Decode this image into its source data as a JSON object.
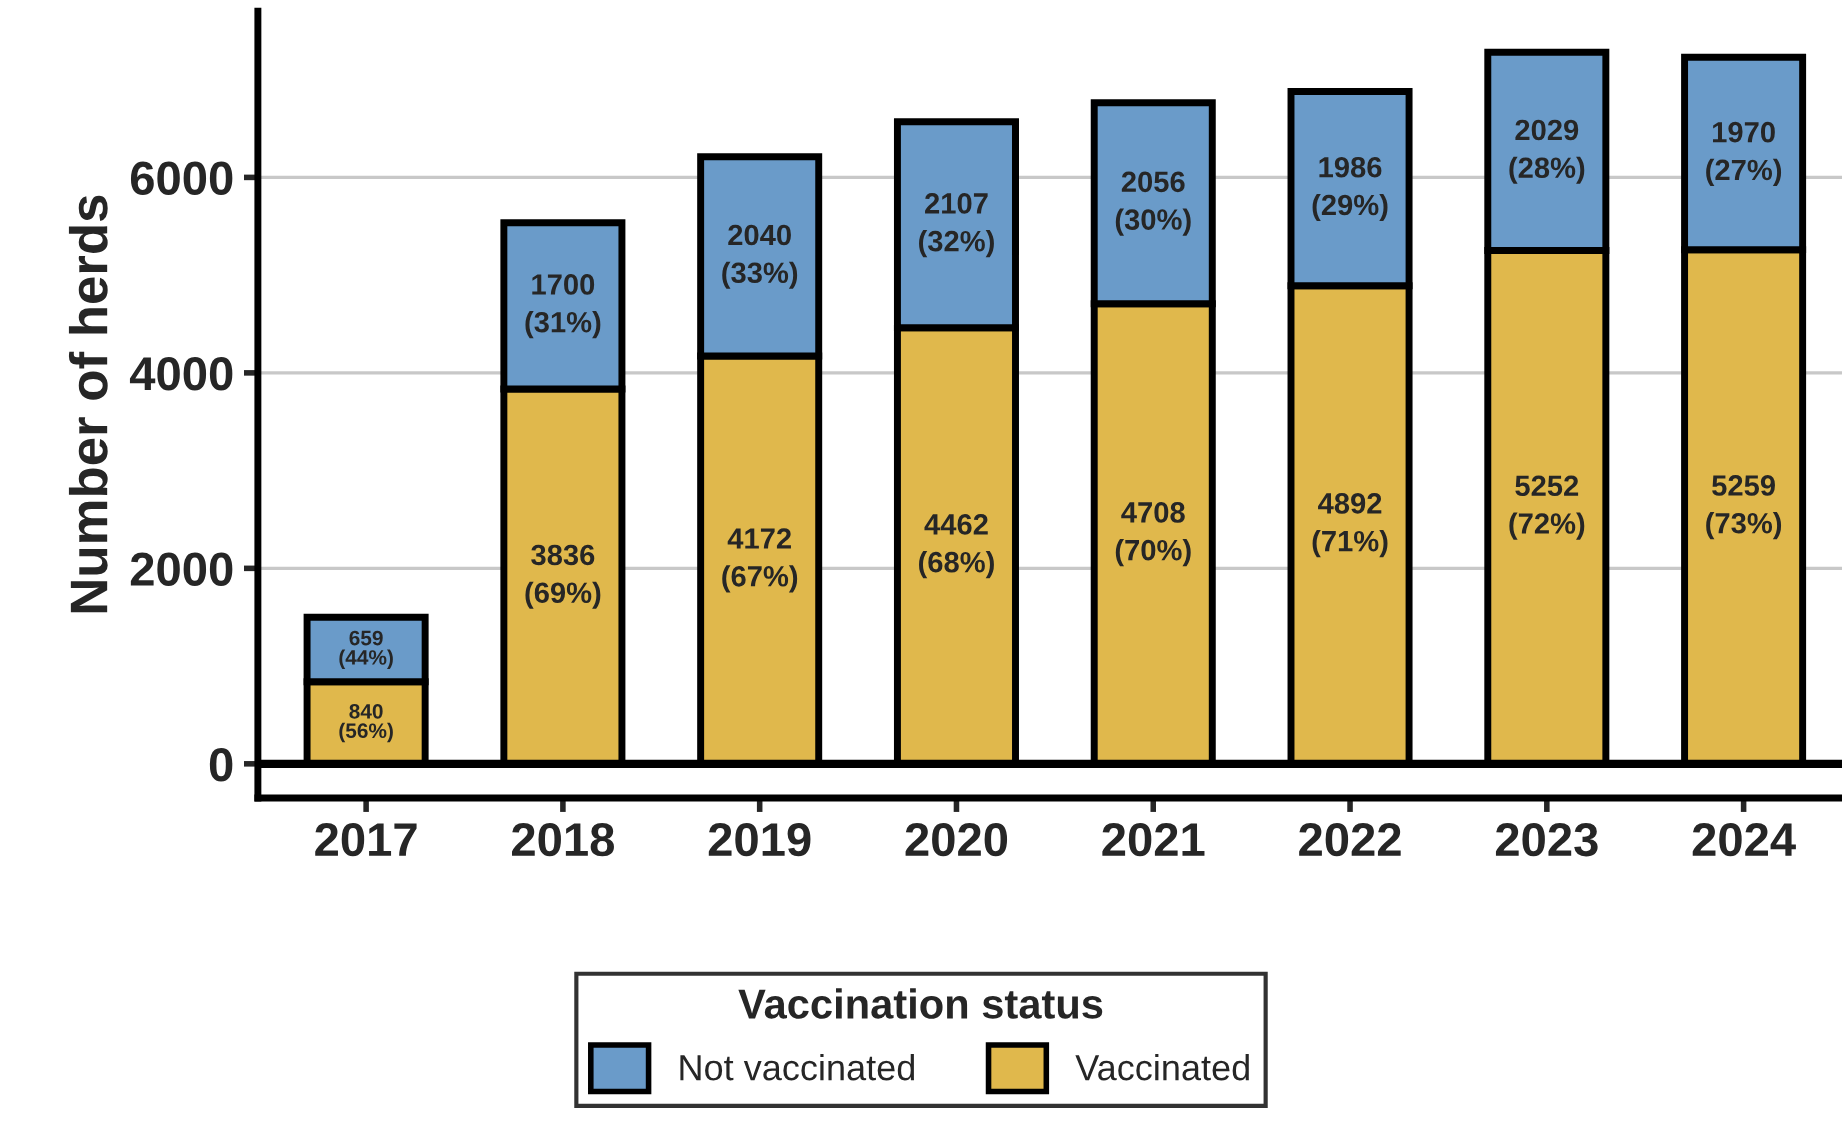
{
  "chart_data": {
    "type": "bar",
    "stacked": true,
    "ylabel": "Number of herds",
    "legend_title": "Vaccination status",
    "legend": "bottom",
    "grid": "y",
    "categories": [
      "2017",
      "2018",
      "2019",
      "2020",
      "2021",
      "2022",
      "2023",
      "2024"
    ],
    "ylim": [
      -350,
      7700
    ],
    "yticks": [
      0,
      2000,
      4000,
      6000
    ],
    "ref_lines": [
      {
        "axis": "y",
        "value": 0,
        "label": null,
        "color": "#000000"
      }
    ],
    "series": [
      {
        "name": "Vaccinated",
        "color": "#e0b84c",
        "values": [
          840,
          3836,
          4172,
          4462,
          4708,
          4892,
          5252,
          5259
        ],
        "value_labels": [
          "840\n(56%)",
          "3836\n(69%)",
          "4172\n(67%)",
          "4462\n(68%)",
          "4708\n(70%)",
          "4892\n(71%)",
          "5252\n(72%)",
          "5259\n(73%)"
        ]
      },
      {
        "name": "Not vaccinated",
        "color": "#6a9bc9",
        "values": [
          659,
          1700,
          2040,
          2107,
          2056,
          1986,
          2029,
          1970
        ],
        "value_labels": [
          "659\n(44%)",
          "1700\n(31%)",
          "2040\n(33%)",
          "2107\n(32%)",
          "2056\n(30%)",
          "1986\n(29%)",
          "2029\n(28%)",
          "1970\n(27%)"
        ]
      }
    ]
  }
}
